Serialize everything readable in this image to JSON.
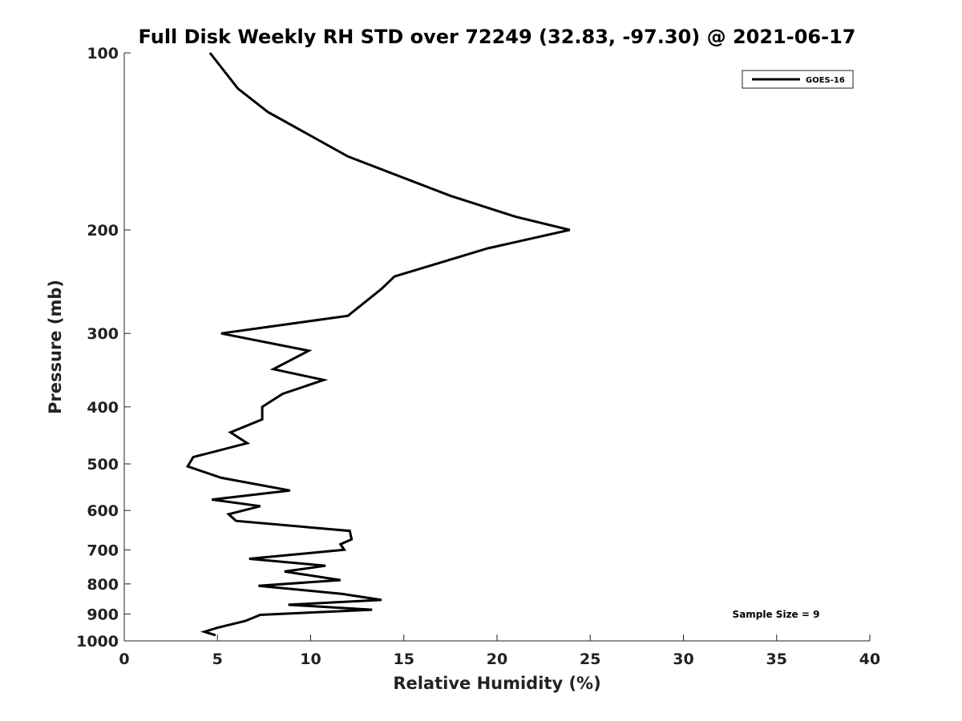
{
  "chart_data": {
    "type": "line",
    "title": "Full Disk Weekly RH STD over 72249 (32.83, -97.30) @ 2021-06-17",
    "xlabel": "Relative Humidity (%)",
    "ylabel": "Pressure (mb)",
    "xlim": [
      0,
      40
    ],
    "ylim": [
      100,
      1000
    ],
    "y_scale": "log",
    "y_inverted": true,
    "x_ticks": [
      0,
      5,
      10,
      15,
      20,
      25,
      30,
      35,
      40
    ],
    "y_ticks": [
      100,
      200,
      300,
      400,
      500,
      600,
      700,
      800,
      900,
      1000
    ],
    "grid": false,
    "legend_position": "top-right",
    "annotation": "Sample Size = 9",
    "series": [
      {
        "name": "GOES-16",
        "color": "#000000",
        "points": [
          [
            4.6,
            100
          ],
          [
            6.1,
            115
          ],
          [
            7.7,
            126
          ],
          [
            12.0,
            150
          ],
          [
            17.5,
            175
          ],
          [
            21.0,
            190
          ],
          [
            23.9,
            200
          ],
          [
            19.5,
            215
          ],
          [
            14.5,
            240
          ],
          [
            13.8,
            252
          ],
          [
            12.0,
            280
          ],
          [
            5.2,
            300
          ],
          [
            9.9,
            321
          ],
          [
            8.0,
            345
          ],
          [
            10.7,
            360
          ],
          [
            8.5,
            380
          ],
          [
            7.4,
            400
          ],
          [
            7.4,
            420
          ],
          [
            5.7,
            442
          ],
          [
            6.6,
            461
          ],
          [
            3.7,
            487
          ],
          [
            3.4,
            505
          ],
          [
            5.2,
            528
          ],
          [
            8.9,
            555
          ],
          [
            4.7,
            575
          ],
          [
            7.3,
            590
          ],
          [
            5.6,
            609
          ],
          [
            6.0,
            625
          ],
          [
            12.1,
            650
          ],
          [
            12.2,
            672
          ],
          [
            11.6,
            685
          ],
          [
            11.8,
            700
          ],
          [
            6.7,
            725
          ],
          [
            10.8,
            745
          ],
          [
            8.6,
            762
          ],
          [
            11.6,
            788
          ],
          [
            7.2,
            806
          ],
          [
            11.7,
            832
          ],
          [
            13.8,
            852
          ],
          [
            8.8,
            868
          ],
          [
            13.3,
            885
          ],
          [
            7.3,
            903
          ],
          [
            6.5,
            925
          ],
          [
            5.0,
            950
          ],
          [
            4.3,
            965
          ],
          [
            4.9,
            978
          ]
        ]
      }
    ]
  }
}
